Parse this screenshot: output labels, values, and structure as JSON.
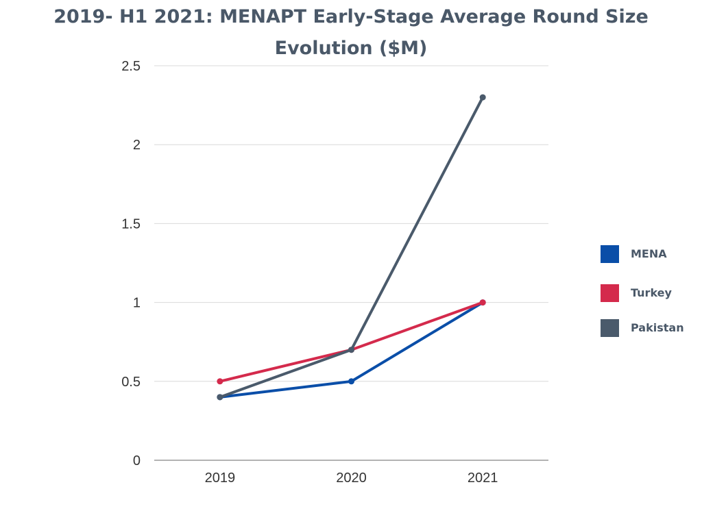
{
  "chart_data": {
    "type": "line",
    "title_line1": "2019- H1 2021: MENAPT Early-Stage Average Round Size",
    "title_line2": "Evolution ($M)",
    "categories": [
      "2019",
      "2020",
      "2021"
    ],
    "ylim": [
      0,
      2.5
    ],
    "yticks": [
      "0",
      "0.5",
      "1",
      "1.5",
      "2",
      "2.5"
    ],
    "grid": true,
    "legend_position": "right",
    "series": [
      {
        "name": "MENA",
        "color": "#0a4ea8",
        "values": [
          0.4,
          0.5,
          1.0
        ]
      },
      {
        "name": "Turkey",
        "color": "#d42a4c",
        "values": [
          0.5,
          0.7,
          1.0
        ]
      },
      {
        "name": "Pakistan",
        "color": "#4a5a6b",
        "values": [
          0.4,
          0.7,
          2.3
        ]
      }
    ]
  }
}
